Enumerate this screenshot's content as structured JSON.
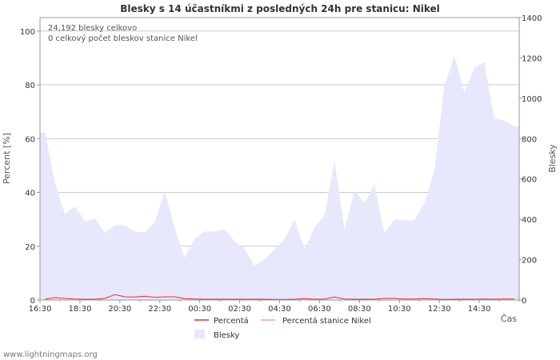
{
  "chart_data": {
    "type": "area",
    "title": "Blesky s 14 účastníkmi z posledných 24h pre stanicu: Nikel",
    "annotations": [
      "24,192 blesky celkovo",
      "0 celkový počet bleskov stanice Nikel"
    ],
    "xlabel": "Čas",
    "ylabel_left": "Percent   [%]",
    "ylabel_right": "Blesky",
    "x_tick_labels": [
      "16:30",
      "18:30",
      "20:30",
      "22:30",
      "00:30",
      "02:30",
      "04:30",
      "06:30",
      "08:30",
      "10:30",
      "12:30",
      "14:30"
    ],
    "y_left_ticks": [
      "0",
      "20",
      "40",
      "60",
      "80",
      "100"
    ],
    "y_right_ticks": [
      "0",
      "200",
      "400",
      "600",
      "800",
      "1000",
      "1200",
      "1400"
    ],
    "ylim_left": [
      0,
      105
    ],
    "ylim_right": [
      0,
      1400
    ],
    "grid": true,
    "x_start": "16:30",
    "x_step_minutes": 30,
    "series": [
      {
        "name": "Blesky",
        "axis": "right",
        "style": "area",
        "color": "#e8e8fc",
        "values": [
          830,
          580,
          425,
          465,
          390,
          405,
          335,
          370,
          370,
          340,
          335,
          385,
          540,
          355,
          210,
          305,
          340,
          340,
          350,
          290,
          255,
          170,
          200,
          250,
          300,
          400,
          250,
          360,
          420,
          690,
          350,
          540,
          480,
          570,
          330,
          400,
          395,
          395,
          480,
          640,
          1060,
          1210,
          1030,
          1150,
          1180,
          900,
          890,
          860
        ]
      },
      {
        "name": "Percentá",
        "axis": "left",
        "style": "line",
        "color": "#e0303a",
        "values": [
          0.3,
          0.9,
          0.6,
          0.4,
          0.3,
          0.3,
          0.6,
          2.0,
          1.2,
          1.1,
          1.4,
          1.0,
          1.2,
          1.2,
          0.5,
          0.4,
          0.3,
          0.3,
          0.3,
          0.3,
          0.3,
          0.3,
          0.3,
          0.2,
          0.2,
          0.3,
          0.5,
          0.3,
          0.4,
          1.1,
          0.4,
          0.3,
          0.3,
          0.3,
          0.6,
          0.6,
          0.4,
          0.4,
          0.5,
          0.4,
          0.2,
          0.3,
          0.3,
          0.3,
          0.4,
          0.3,
          0.4,
          0.4
        ]
      },
      {
        "name": "Percentá stanice Nikel",
        "axis": "left",
        "style": "line",
        "color": "#f4a0a8",
        "values": [
          0,
          0,
          0,
          0,
          0,
          0,
          0,
          0,
          0,
          0,
          0,
          0,
          0,
          0,
          0,
          0,
          0,
          0,
          0,
          0,
          0,
          0,
          0,
          0,
          0,
          0,
          0,
          0,
          0,
          0,
          0,
          0,
          0,
          0,
          0,
          0,
          0,
          0,
          0,
          0,
          0,
          0,
          0,
          0,
          0,
          0,
          0,
          0
        ]
      }
    ],
    "legend": [
      {
        "label": "Percentá",
        "color": "#e0303a",
        "kind": "line"
      },
      {
        "label": "Percentá stanice Nikel",
        "color": "#f4a0a8",
        "kind": "line"
      },
      {
        "label": "Blesky",
        "color": "#e8e8fc",
        "kind": "area"
      }
    ]
  },
  "footer": "www.lightningmaps.org"
}
